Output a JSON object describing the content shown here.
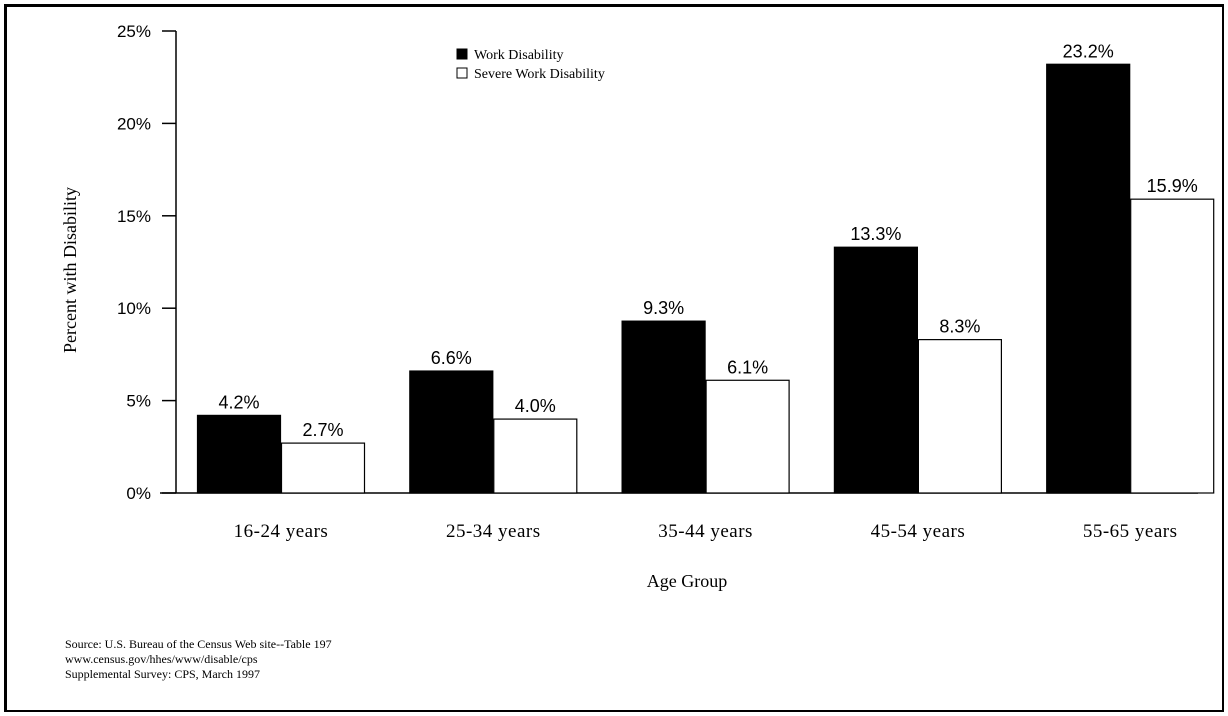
{
  "chart_data": {
    "type": "bar",
    "categories": [
      "16-24 years",
      "25-34 years",
      "35-44 years",
      "45-54 years",
      "55-65 years"
    ],
    "series": [
      {
        "name": "Work Disability",
        "values": [
          4.2,
          6.6,
          9.3,
          13.3,
          23.2
        ],
        "labels": [
          "4.2%",
          "6.6%",
          "9.3%",
          "13.3%",
          "23.2%"
        ],
        "color": "#000000"
      },
      {
        "name": "Severe Work Disability",
        "values": [
          2.7,
          4.0,
          6.1,
          8.3,
          15.9
        ],
        "labels": [
          "2.7%",
          "4.0%",
          "6.1%",
          "8.3%",
          "15.9%"
        ],
        "color": "#ffffff"
      }
    ],
    "ylabel": "Percent with Disability",
    "xlabel": "Age Group",
    "ylim": [
      0,
      25
    ],
    "yticks": [
      0,
      5,
      10,
      15,
      20,
      25
    ],
    "ytick_labels": [
      "0%",
      "5%",
      "10%",
      "15%",
      "20%",
      "25%"
    ],
    "grid": false,
    "legend_position": "top-center"
  },
  "source_lines": [
    "Source: U.S. Bureau of the Census Web site--Table 197",
    "www.census.gov/hhes/www/disable/cps",
    "Supplemental Survey: CPS, March 1997"
  ]
}
